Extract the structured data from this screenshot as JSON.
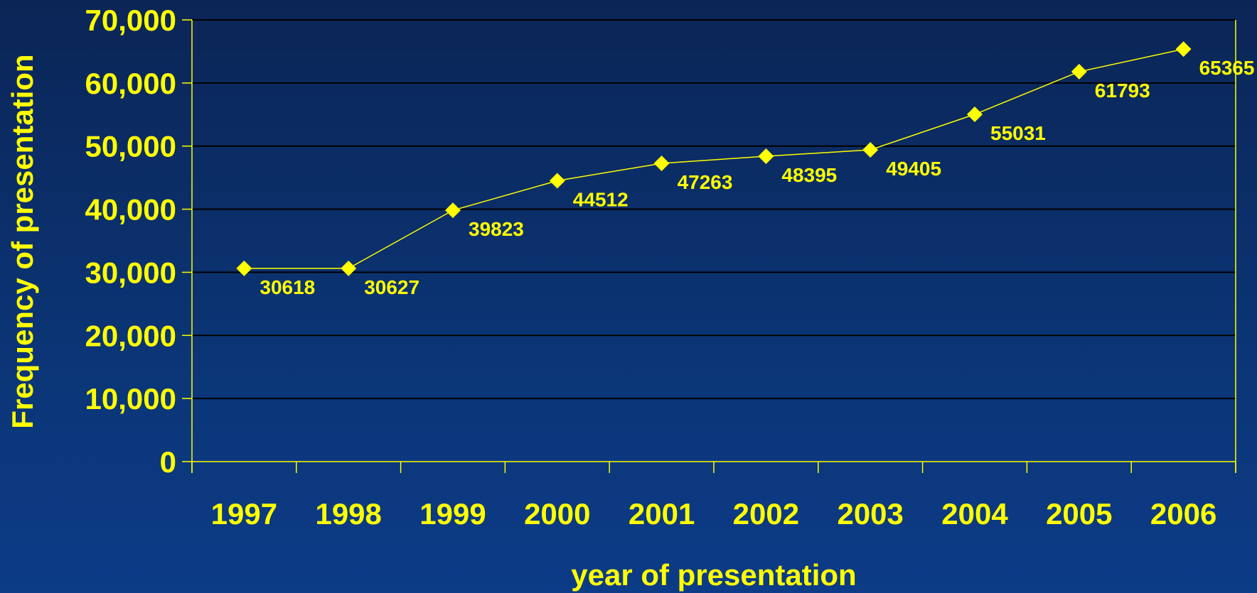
{
  "chart_data": {
    "type": "line",
    "title": "",
    "xlabel": "year of presentation",
    "ylabel": "Frequency of presentation",
    "categories": [
      "1997",
      "1998",
      "1999",
      "2000",
      "2001",
      "2002",
      "2003",
      "2004",
      "2005",
      "2006"
    ],
    "series": [
      {
        "values": [
          30618,
          30627,
          39823,
          44512,
          47263,
          48395,
          49405,
          55031,
          61793,
          65365
        ],
        "marker": "diamond"
      }
    ],
    "data_labels": [
      "30618",
      "30627",
      "39823",
      "44512",
      "47263",
      "48395",
      "49405",
      "55031",
      "61793",
      "65365"
    ],
    "ylim": [
      0,
      70000
    ],
    "yticks": [
      0,
      10000,
      20000,
      30000,
      40000,
      50000,
      60000,
      70000
    ],
    "ytick_labels": [
      "0",
      "10,000",
      "20,000",
      "30,000",
      "40,000",
      "50,000",
      "60,000",
      "70,000"
    ],
    "grid": true,
    "legend": "none",
    "colors": {
      "line": "#ffff00",
      "marker": "#ffff00",
      "text": "#ffff00",
      "gridline": "#000000",
      "background": "#0b3576"
    }
  }
}
